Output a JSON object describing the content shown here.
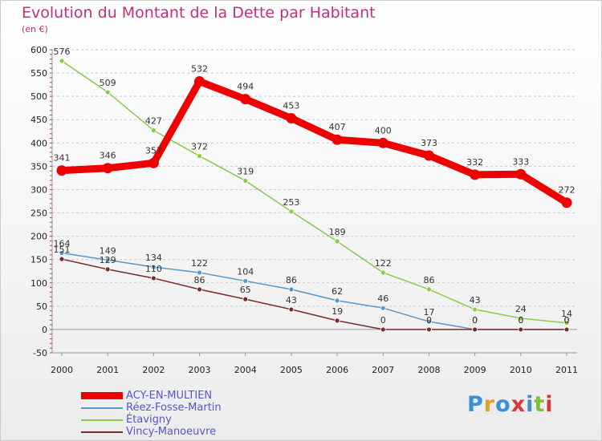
{
  "header": {
    "title": "Evolution du Montant de la Dette par Habitant",
    "subtitle": "(en €)"
  },
  "logo": {
    "text": "Proxiti"
  },
  "colors": {
    "title": "#c0307a",
    "grid": "#c8c8c8",
    "zero_line": "#999999"
  },
  "chart_data": {
    "type": "line",
    "title": "Evolution du Montant de la Dette par Habitant",
    "subtitle": "(en €)",
    "x": [
      "2000",
      "2001",
      "2002",
      "2003",
      "2004",
      "2005",
      "2006",
      "2007",
      "2008",
      "2009",
      "2010",
      "2011"
    ],
    "ylim": [
      -50,
      600
    ],
    "yticks": [
      -50,
      0,
      50,
      100,
      150,
      200,
      250,
      300,
      350,
      400,
      450,
      500,
      550,
      600
    ],
    "grid": "horizontal dashed",
    "legend": "bottom-left",
    "series": [
      {
        "name": "ACY-EN-MULTIEN",
        "color": "#ee0000",
        "width": 9,
        "values": [
          341,
          346,
          357,
          532,
          494,
          453,
          407,
          400,
          373,
          332,
          333,
          272
        ],
        "labels": [
          "341",
          "346",
          "357",
          "532",
          "494",
          "453",
          "407",
          "400",
          "373",
          "332",
          "333",
          "272"
        ]
      },
      {
        "name": "Réez-Fosse-Martin",
        "color": "#5599cc",
        "width": 1.5,
        "values": [
          164,
          149,
          134,
          122,
          104,
          86,
          62,
          46,
          17,
          0,
          0,
          0
        ],
        "labels": [
          "164",
          "149",
          "134",
          "122",
          "104",
          "86",
          "62",
          "46",
          "17",
          "0",
          "0",
          "0"
        ]
      },
      {
        "name": "Étavigny",
        "color": "#88cc44",
        "width": 1.5,
        "values": [
          576,
          509,
          427,
          372,
          319,
          253,
          189,
          122,
          86,
          43,
          24,
          14
        ],
        "labels": [
          "576",
          "509",
          "427",
          "372",
          "319",
          "253",
          "189",
          "122",
          "86",
          "43",
          "24",
          "14"
        ]
      },
      {
        "name": "Vincy-Manoeuvre",
        "color": "#7a2a2a",
        "width": 1.5,
        "values": [
          151,
          129,
          110,
          86,
          65,
          43,
          19,
          0,
          0,
          0,
          0,
          0
        ],
        "labels": [
          "151",
          "129",
          "110",
          "86",
          "65",
          "43",
          "19",
          "0",
          "0",
          "0",
          "0",
          "0"
        ]
      }
    ]
  }
}
